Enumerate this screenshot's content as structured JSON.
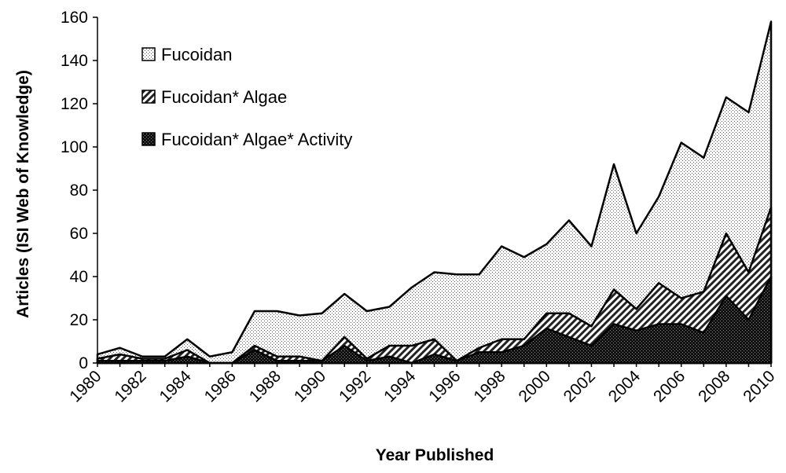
{
  "chart_data": {
    "type": "area",
    "title": "",
    "xlabel": "Year Published",
    "ylabel": "Articles (ISI Web of Knowledge)",
    "xlim": [
      1980,
      2010
    ],
    "ylim": [
      0,
      160
    ],
    "x_ticks": [
      "1980",
      "1982",
      "1984",
      "1986",
      "1988",
      "1990",
      "1992",
      "1994",
      "1996",
      "1998",
      "2000",
      "2002",
      "2004",
      "2006",
      "2008",
      "2010"
    ],
    "y_ticks": [
      "0",
      "20",
      "40",
      "60",
      "80",
      "100",
      "120",
      "140",
      "160"
    ],
    "x": [
      1980,
      1981,
      1982,
      1983,
      1984,
      1985,
      1986,
      1987,
      1988,
      1989,
      1990,
      1991,
      1992,
      1993,
      1994,
      1995,
      1996,
      1997,
      1998,
      1999,
      2000,
      2001,
      2002,
      2003,
      2004,
      2005,
      2006,
      2007,
      2008,
      2009,
      2010
    ],
    "series": [
      {
        "name": "Fucoidan",
        "pattern": "dots",
        "values": [
          4,
          7,
          3,
          3,
          11,
          3,
          5,
          24,
          24,
          22,
          23,
          32,
          24,
          26,
          35,
          42,
          41,
          41,
          54,
          49,
          55,
          66,
          54,
          92,
          60,
          77,
          102,
          95,
          123,
          116,
          158
        ]
      },
      {
        "name": "Fucoidan* Algae",
        "pattern": "hatch",
        "values": [
          2,
          4,
          2,
          2,
          6,
          0,
          0,
          8,
          3,
          3,
          1,
          12,
          2,
          8,
          8,
          11,
          1,
          7,
          11,
          11,
          23,
          23,
          17,
          34,
          25,
          37,
          30,
          33,
          60,
          42,
          72
        ]
      },
      {
        "name": "Fucoidan* Algae* Activity",
        "pattern": "dark",
        "values": [
          1,
          1,
          1,
          1,
          3,
          0,
          0,
          6,
          1,
          1,
          1,
          8,
          1,
          3,
          0,
          4,
          1,
          5,
          5,
          8,
          16,
          12,
          8,
          18,
          15,
          18,
          18,
          14,
          31,
          20,
          40
        ]
      }
    ],
    "grid": false,
    "legend_position": "top-left"
  }
}
